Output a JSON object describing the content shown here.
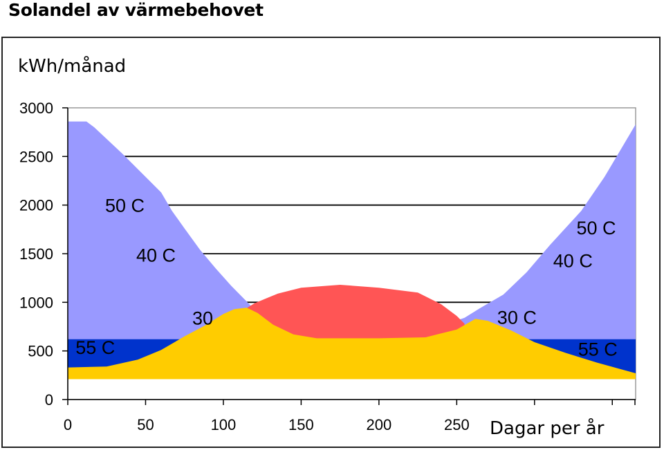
{
  "title": "Solandel av värmebehovet",
  "chart_data": {
    "type": "area",
    "ylabel": "kWh/månad",
    "xlabel": "Dagar per år",
    "xlim": [
      0,
      365
    ],
    "ylim": [
      0,
      3000
    ],
    "x_ticks": [
      0,
      50,
      100,
      150,
      200,
      250
    ],
    "y_ticks": [
      0,
      500,
      1000,
      1500,
      2000,
      2500,
      3000
    ],
    "grid": "horizontal",
    "series": [
      {
        "color": "#9999ff",
        "points": [
          [
            0,
            2860
          ],
          [
            12,
            2860
          ],
          [
            17,
            2800
          ],
          [
            25,
            2680
          ],
          [
            35,
            2530
          ],
          [
            50,
            2290
          ],
          [
            60,
            2130
          ],
          [
            67,
            1940
          ],
          [
            75,
            1760
          ],
          [
            85,
            1540
          ],
          [
            95,
            1350
          ],
          [
            105,
            1170
          ],
          [
            118,
            960
          ],
          [
            130,
            840
          ],
          [
            140,
            760
          ],
          [
            150,
            700
          ],
          [
            165,
            660
          ],
          [
            182,
            650
          ],
          [
            200,
            655
          ],
          [
            220,
            690
          ],
          [
            240,
            760
          ],
          [
            255,
            840
          ],
          [
            265,
            940
          ],
          [
            280,
            1080
          ],
          [
            295,
            1310
          ],
          [
            310,
            1590
          ],
          [
            330,
            1940
          ],
          [
            345,
            2290
          ],
          [
            365,
            2830
          ],
          [
            365,
            210
          ],
          [
            0,
            210
          ]
        ]
      },
      {
        "color": "#0033cc",
        "points": [
          [
            0,
            620
          ],
          [
            365,
            620
          ],
          [
            365,
            210
          ],
          [
            0,
            210
          ]
        ]
      },
      {
        "color": "#ff5555",
        "points": [
          [
            100,
            780
          ],
          [
            110,
            890
          ],
          [
            120,
            990
          ],
          [
            135,
            1090
          ],
          [
            150,
            1150
          ],
          [
            175,
            1180
          ],
          [
            200,
            1150
          ],
          [
            225,
            1100
          ],
          [
            240,
            980
          ],
          [
            250,
            860
          ],
          [
            255,
            780
          ],
          [
            255,
            600
          ],
          [
            100,
            600
          ]
        ]
      },
      {
        "color": "#ffcc00",
        "points": [
          [
            0,
            330
          ],
          [
            25,
            340
          ],
          [
            45,
            410
          ],
          [
            60,
            510
          ],
          [
            75,
            650
          ],
          [
            88,
            760
          ],
          [
            100,
            880
          ],
          [
            107,
            930
          ],
          [
            115,
            945
          ],
          [
            122,
            890
          ],
          [
            132,
            770
          ],
          [
            145,
            670
          ],
          [
            160,
            630
          ],
          [
            200,
            630
          ],
          [
            230,
            640
          ],
          [
            250,
            720
          ],
          [
            262,
            830
          ],
          [
            270,
            810
          ],
          [
            285,
            710
          ],
          [
            300,
            590
          ],
          [
            320,
            480
          ],
          [
            340,
            380
          ],
          [
            365,
            270
          ],
          [
            365,
            210
          ],
          [
            0,
            210
          ]
        ]
      }
    ],
    "annotations": [
      {
        "text": "50 C",
        "x": 24,
        "y": 1930,
        "color": "#000000"
      },
      {
        "text": "40 C",
        "x": 44,
        "y": 1420,
        "color": "#000000"
      },
      {
        "text": "30",
        "x": 80,
        "y": 770,
        "color": "#000000"
      },
      {
        "text": "55 C",
        "x": 5,
        "y": 470,
        "color": "#ffffff"
      },
      {
        "text": "50 C",
        "x": 327,
        "y": 1700,
        "color": "#000000"
      },
      {
        "text": "40 C",
        "x": 312,
        "y": 1360,
        "color": "#000000"
      },
      {
        "text": "30 C",
        "x": 276,
        "y": 780,
        "color": "#000000"
      },
      {
        "text": "55 C",
        "x": 328,
        "y": 450,
        "color": "#ffffff"
      }
    ]
  }
}
